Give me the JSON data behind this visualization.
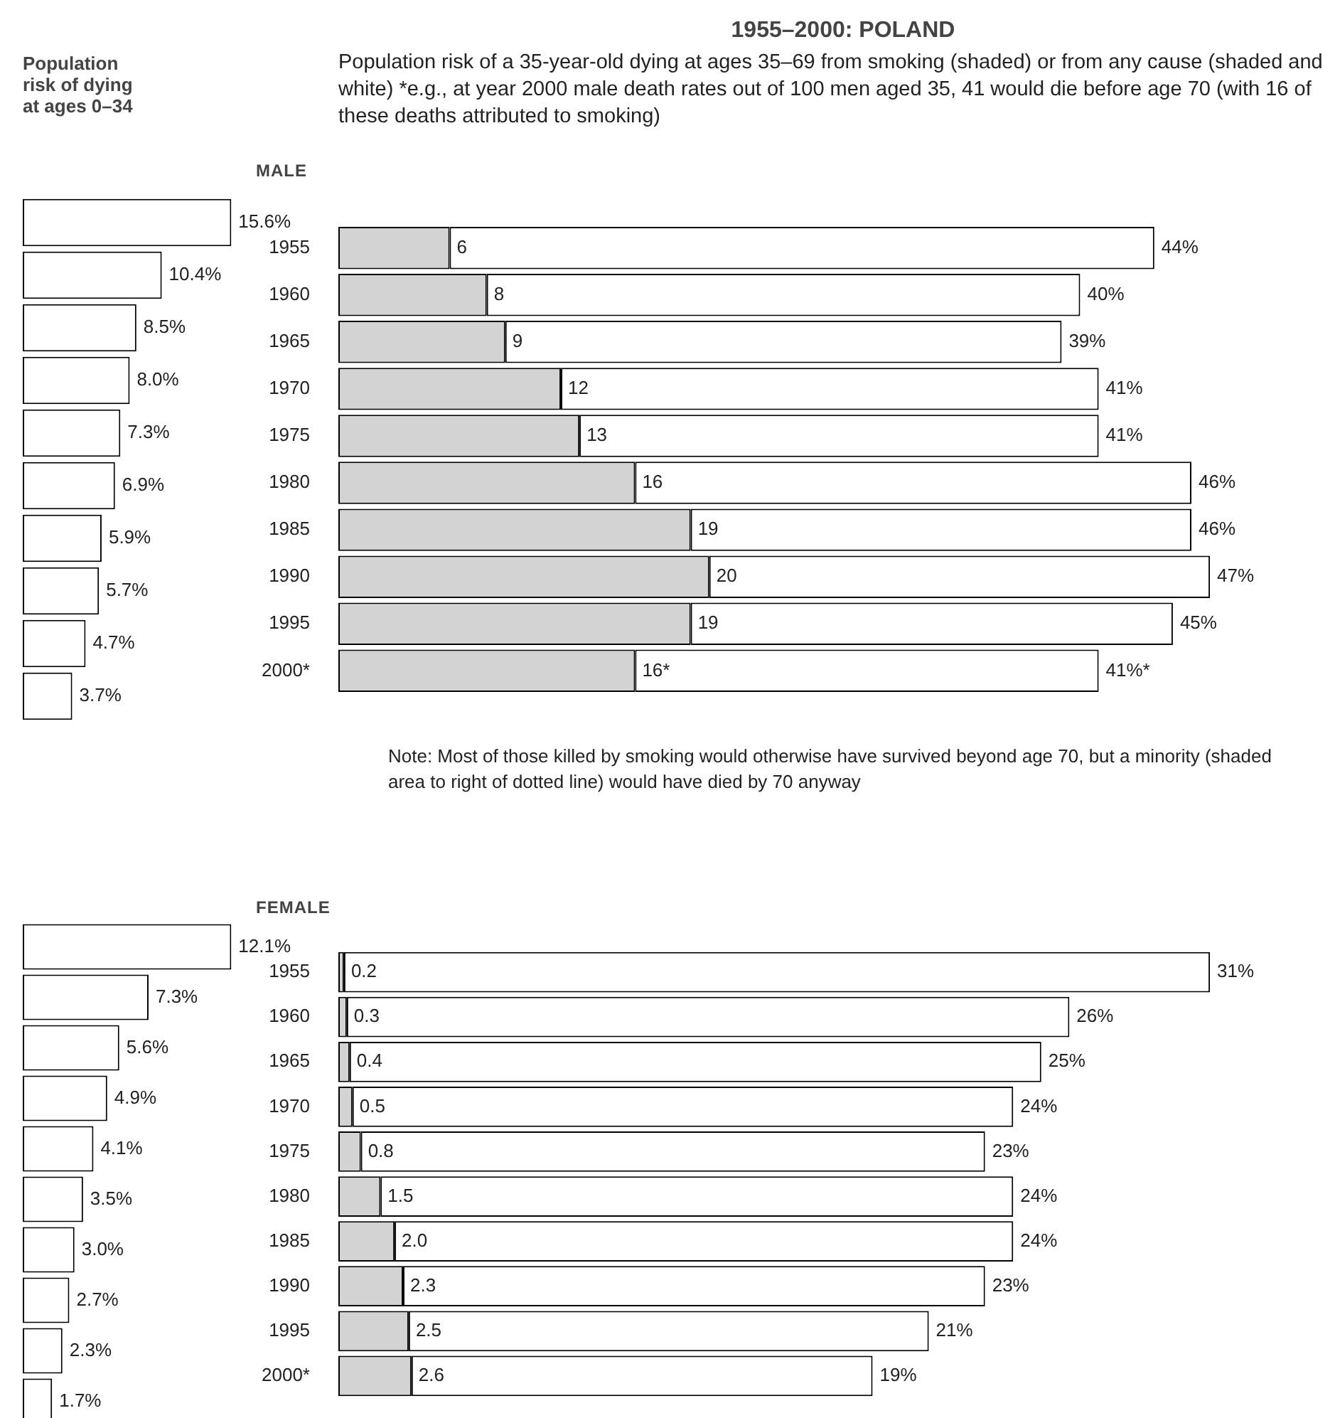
{
  "chart_data": [
    {
      "type": "bar",
      "orientation": "horizontal",
      "title": "Population risk of dying at ages 0–34",
      "categories": [
        null,
        null,
        null,
        null,
        null,
        null,
        null,
        null,
        null,
        null
      ],
      "values": [
        15.6,
        10.4,
        8.5,
        8.0,
        7.3,
        6.9,
        5.9,
        5.7,
        4.7,
        3.7
      ],
      "value_labels": [
        "15.6%",
        "10.4%",
        "8.5%",
        "8.0%",
        "7.3%",
        "6.9%",
        "5.9%",
        "5.7%",
        "4.7%",
        "3.7%"
      ],
      "color": "#ffffff",
      "tick_labels": false
    },
    {
      "type": "bar",
      "orientation": "horizontal",
      "stacked": true,
      "title": "1955–2000: POLAND",
      "subtitle": "Population risk of a 35-year-old dying at ages 35–69 from smoking (shaded) or from any cause (shaded and white) *e.g., at year 2000 male death rates out of 100 men aged 35, 41 would die before age 70 (with 16 of these deaths attributed to smoking)",
      "ylabel": "MALE",
      "annotations": [
        "Note: Most of those killed by smoking would otherwise have survived beyond age 70, but a minority (shaded area to right of dotted line) would have died by 70 anyway"
      ],
      "categories": [
        "1955",
        "1960",
        "1965",
        "1970",
        "1975",
        "1980",
        "1985",
        "1990",
        "1995",
        "2000*"
      ],
      "tick_labels": "y",
      "series": [
        {
          "color": "#d3d3d3",
          "values": [
            6,
            8,
            9,
            12,
            13,
            16,
            19,
            20,
            19,
            16
          ],
          "value_labels": [
            "6",
            "8",
            "9",
            "12",
            "13",
            "16",
            "19",
            "20",
            "19",
            "16*"
          ]
        },
        {
          "color": "#ffffff",
          "values": [
            38,
            32,
            30,
            29,
            28,
            30,
            27,
            27,
            26,
            25
          ]
        }
      ],
      "totals": [
        "44%",
        "40%",
        "39%",
        "41%",
        "41%",
        "46%",
        "46%",
        "47%",
        "45%",
        "41%*"
      ]
    },
    {
      "type": "bar",
      "orientation": "horizontal",
      "categories": [
        null,
        null,
        null,
        null,
        null,
        null,
        null,
        null,
        null,
        null
      ],
      "values": [
        12.1,
        7.3,
        5.6,
        4.9,
        4.1,
        3.5,
        3.0,
        2.7,
        2.3,
        1.7
      ],
      "value_labels": [
        "12.1%",
        "7.3%",
        "5.6%",
        "4.9%",
        "4.1%",
        "3.5%",
        "3.0%",
        "2.7%",
        "2.3%",
        "1.7%"
      ],
      "color": "#ffffff",
      "tick_labels": false
    },
    {
      "type": "bar",
      "orientation": "horizontal",
      "stacked": true,
      "ylabel": "FEMALE",
      "categories": [
        "1955",
        "1960",
        "1965",
        "1970",
        "1975",
        "1980",
        "1985",
        "1990",
        "1995",
        "2000*"
      ],
      "tick_labels": "y",
      "series": [
        {
          "color": "#d3d3d3",
          "values": [
            0.2,
            0.3,
            0.4,
            0.5,
            0.8,
            1.5,
            2.0,
            2.3,
            2.5,
            2.6
          ],
          "value_labels": [
            "0.2",
            "0.3",
            "0.4",
            "0.5",
            "0.8",
            "1.5",
            "2.0",
            "2.3",
            "2.5",
            "2.6"
          ]
        },
        {
          "color": "#ffffff",
          "values": [
            30.8,
            25.7,
            24.6,
            23.5,
            22.2,
            22.5,
            22,
            20.7,
            18.5,
            16.4
          ]
        }
      ],
      "totals": [
        "31%",
        "26%",
        "25%",
        "24%",
        "23%",
        "24%",
        "24%",
        "23%",
        "21%",
        "19%"
      ]
    }
  ]
}
